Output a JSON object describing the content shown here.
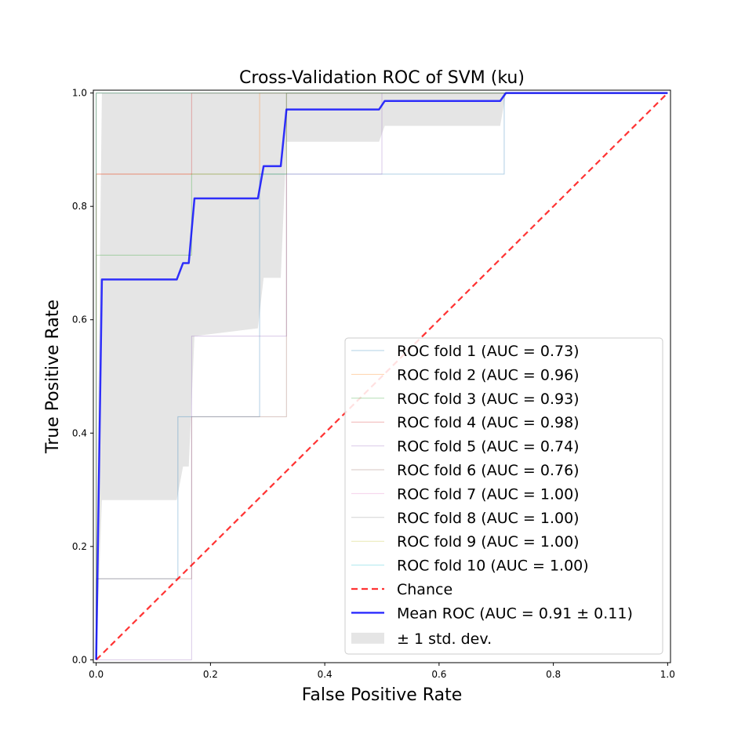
{
  "chart_data": {
    "type": "line",
    "title": "Cross-Validation ROC of SVM (ku)",
    "xlabel": "False Positive Rate",
    "ylabel": "True Positive Rate",
    "xlim": [
      -0.005,
      1.005
    ],
    "ylim": [
      -0.005,
      1.005
    ],
    "x_ticks": [
      "0.0",
      "0.2",
      "0.4",
      "0.6",
      "0.8",
      "1.0"
    ],
    "y_ticks": [
      "0.0",
      "0.2",
      "0.4",
      "0.6",
      "0.8",
      "1.0"
    ],
    "grid": false,
    "legend_position": "lower right",
    "folds": [
      {
        "name": "ROC fold 1 (AUC = 0.73)",
        "color": "#1f77b4",
        "x": [
          0,
          0,
          0.143,
          0.143,
          0.286,
          0.286,
          0.5,
          0.5,
          0.714,
          0.714,
          1
        ],
        "y": [
          0,
          0.143,
          0.143,
          0.429,
          0.429,
          0.857,
          0.857,
          0.857,
          0.857,
          1,
          1
        ]
      },
      {
        "name": "ROC fold 2 (AUC = 0.96)",
        "color": "#ff7f0e",
        "x": [
          0,
          0,
          0.286,
          0.286,
          1
        ],
        "y": [
          0,
          0.857,
          0.857,
          1,
          1
        ]
      },
      {
        "name": "ROC fold 3 (AUC = 0.93)",
        "color": "#2ca02c",
        "x": [
          0,
          0,
          0.167,
          0.167,
          0.333,
          0.333,
          1
        ],
        "y": [
          0,
          0.714,
          0.714,
          0.857,
          0.857,
          1,
          1
        ]
      },
      {
        "name": "ROC fold 4 (AUC = 0.98)",
        "color": "#d62728",
        "x": [
          0,
          0,
          0.167,
          0.167,
          1
        ],
        "y": [
          0,
          0.857,
          0.857,
          1,
          1
        ]
      },
      {
        "name": "ROC fold 5 (AUC = 0.74)",
        "color": "#9467bd",
        "x": [
          0,
          0.167,
          0.167,
          0.333,
          0.333,
          0.5,
          0.5,
          1
        ],
        "y": [
          0,
          0,
          0.571,
          0.571,
          0.857,
          0.857,
          1,
          1
        ]
      },
      {
        "name": "ROC fold 6 (AUC = 0.76)",
        "color": "#8c564b",
        "x": [
          0,
          0,
          0.167,
          0.167,
          0.333,
          0.333,
          1
        ],
        "y": [
          0,
          0.143,
          0.143,
          0.429,
          0.429,
          1,
          1
        ]
      },
      {
        "name": "ROC fold 7 (AUC = 1.00)",
        "color": "#e377c2",
        "x": [
          0,
          0,
          1
        ],
        "y": [
          0,
          1,
          1
        ]
      },
      {
        "name": "ROC fold 8 (AUC = 1.00)",
        "color": "#7f7f7f",
        "x": [
          0,
          0,
          1
        ],
        "y": [
          0,
          1,
          1
        ]
      },
      {
        "name": "ROC fold 9 (AUC = 1.00)",
        "color": "#bcbd22",
        "x": [
          0,
          0,
          1
        ],
        "y": [
          0,
          1,
          1
        ]
      },
      {
        "name": "ROC fold 10 (AUC = 1.00)",
        "color": "#17becf",
        "x": [
          0,
          0,
          1
        ],
        "y": [
          0,
          1,
          1
        ]
      }
    ],
    "chance": {
      "name": "Chance",
      "color": "#ff0000",
      "x": [
        0,
        1
      ],
      "y": [
        0,
        1
      ]
    },
    "mean": {
      "name": "Mean ROC (AUC = 0.91 ± 0.11)",
      "color": "#0000ff",
      "x": [
        0,
        0.01,
        0.141,
        0.152,
        0.162,
        0.172,
        0.283,
        0.293,
        0.303,
        0.323,
        0.333,
        0.343,
        0.354,
        0.364,
        0.495,
        0.505,
        0.515,
        0.707,
        0.717,
        1
      ],
      "y": [
        0,
        0.671,
        0.671,
        0.7,
        0.7,
        0.814,
        0.814,
        0.871,
        0.871,
        0.871,
        0.971,
        0.971,
        0.971,
        0.971,
        0.971,
        0.986,
        0.986,
        0.986,
        1,
        1
      ]
    },
    "std_band": {
      "name": "± 1 std. dev.",
      "color": "#b4b4b4",
      "x": [
        0,
        0.01,
        0.141,
        0.152,
        0.162,
        0.172,
        0.283,
        0.293,
        0.303,
        0.323,
        0.333,
        0.343,
        0.354,
        0.364,
        0.495,
        0.505,
        0.515,
        0.707,
        0.717,
        1
      ],
      "upper": [
        0.14,
        1,
        1,
        1,
        1,
        1,
        1,
        1,
        1,
        1,
        1,
        1,
        1,
        1,
        1,
        1,
        1,
        1,
        1,
        1
      ],
      "lower": [
        0,
        0.282,
        0.282,
        0.341,
        0.341,
        0.571,
        0.585,
        0.674,
        0.674,
        0.674,
        0.914,
        0.914,
        0.914,
        0.914,
        0.914,
        0.942,
        0.942,
        0.942,
        1,
        1
      ]
    }
  }
}
